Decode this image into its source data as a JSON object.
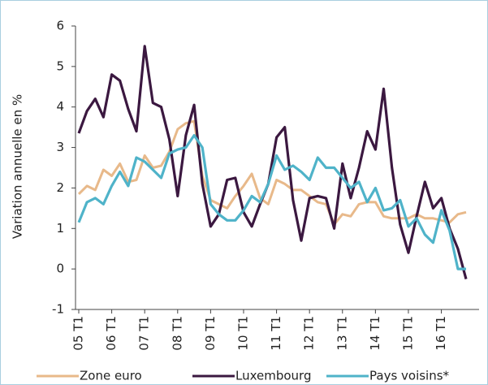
{
  "chart_data": {
    "type": "line",
    "ylabel": "Variation annuelle  en  %",
    "categories": [
      "05 T1",
      null,
      null,
      null,
      "06 T1",
      null,
      null,
      null,
      "07 T1",
      null,
      null,
      null,
      "08 T1",
      null,
      null,
      null,
      "09 T1",
      null,
      null,
      null,
      "10 T1",
      null,
      null,
      null,
      "11 T1",
      null,
      null,
      null,
      "12 T1",
      null,
      null,
      null,
      "13 T1",
      null,
      null,
      null,
      "14 T1",
      null,
      null,
      null,
      "15 T1",
      null,
      null,
      null,
      "16 T1",
      null,
      null,
      null
    ],
    "series": [
      {
        "name": "Zone euro",
        "color": "#e8b98a",
        "values": [
          1.85,
          2.05,
          1.95,
          2.45,
          2.3,
          2.6,
          2.15,
          2.2,
          2.8,
          2.5,
          2.55,
          2.9,
          3.45,
          3.6,
          3.65,
          2.3,
          1.7,
          1.6,
          1.5,
          1.8,
          2.05,
          2.35,
          1.75,
          1.6,
          2.2,
          2.1,
          1.95,
          1.95,
          1.8,
          1.65,
          1.6,
          1.1,
          1.35,
          1.3,
          1.6,
          1.65,
          1.65,
          1.3,
          1.25,
          1.25,
          1.25,
          1.35,
          1.25,
          1.25,
          1.2,
          1.15,
          1.35,
          1.4
        ]
      },
      {
        "name": "Luxembourg",
        "color": "#3b1840",
        "values": [
          3.35,
          3.9,
          4.2,
          3.75,
          4.8,
          4.65,
          3.95,
          3.4,
          5.5,
          4.1,
          4.0,
          3.2,
          1.8,
          3.3,
          4.05,
          2.1,
          1.05,
          1.35,
          2.2,
          2.25,
          1.4,
          1.05,
          1.6,
          2.1,
          3.25,
          3.5,
          1.7,
          0.7,
          1.75,
          1.8,
          1.75,
          1.0,
          2.6,
          1.75,
          2.5,
          3.4,
          2.95,
          4.45,
          2.5,
          1.1,
          0.4,
          1.3,
          2.15,
          1.5,
          1.75,
          1.0,
          0.5,
          -0.25
        ]
      },
      {
        "name": "Pays voisins*",
        "color": "#4fb3c9",
        "values": [
          1.15,
          1.65,
          1.75,
          1.6,
          2.05,
          2.4,
          2.05,
          2.75,
          2.65,
          2.45,
          2.25,
          2.85,
          2.95,
          3.0,
          3.3,
          3.0,
          1.6,
          1.35,
          1.2,
          1.2,
          1.45,
          1.8,
          1.65,
          2.1,
          2.8,
          2.45,
          2.55,
          2.4,
          2.2,
          2.75,
          2.5,
          2.5,
          2.25,
          2.0,
          2.15,
          1.65,
          2.0,
          1.45,
          1.5,
          1.7,
          1.05,
          1.25,
          0.85,
          0.65,
          1.45,
          0.95,
          0.0,
          0.0
        ]
      }
    ],
    "ylim": [
      -1,
      6
    ],
    "yticks": [
      -1,
      0,
      1,
      2,
      3,
      4,
      5,
      6
    ],
    "grid": false
  }
}
